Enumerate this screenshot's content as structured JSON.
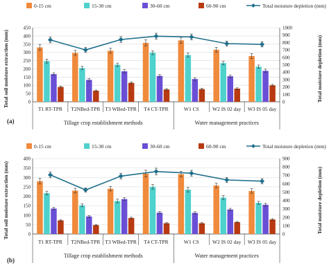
{
  "colors": {
    "0-15 cm": "#f08a3c",
    "15-30 cm": "#4fd1cc",
    "30-60 cm": "#6a4fd6",
    "60-90 cm": "#b83a12",
    "depletion": "#1f6f8b",
    "axis": "#404040",
    "grid": "#d9d9d9"
  },
  "chart_data": [
    {
      "panel_label": "(a)",
      "type": "bar",
      "categories": [
        "T1 RT-TPR",
        "T2NBed-TPR",
        "T3 WBed-TPR",
        "T4 CT-TPR",
        "W1 CS",
        "W2 IS 02 day",
        "W3 IS 05 day"
      ],
      "groups": [
        {
          "label": "Tillage crop establishment methods",
          "from": 0,
          "to": 3
        },
        {
          "label": "Water management practices",
          "from": 4,
          "to": 6
        }
      ],
      "legend": [
        "0-15 cm",
        "15-30 cm",
        "30-60 cm",
        "60-90 cm",
        "Total moisture depletion (mm)"
      ],
      "ylabel": "Total soil moisture extraction (mm)",
      "y2label": "Total moisture depletion (mm)",
      "ylim": [
        0,
        450
      ],
      "yticks": [
        "0",
        "50",
        "100",
        "150",
        "200",
        "250",
        "300",
        "350",
        "400",
        "450"
      ],
      "y2lim": [
        0,
        1000
      ],
      "y2ticks": [
        "0",
        "100",
        "200",
        "300",
        "400",
        "500",
        "600",
        "700",
        "800",
        "900",
        "1000"
      ],
      "series": [
        {
          "name": "0-15 cm",
          "values": [
            330,
            297,
            310,
            358,
            373,
            316,
            278
          ],
          "errors": [
            18,
            15,
            15,
            18,
            18,
            15,
            15
          ]
        },
        {
          "name": "15-30 cm",
          "values": [
            247,
            205,
            225,
            298,
            284,
            235,
            213
          ],
          "errors": [
            12,
            10,
            10,
            12,
            12,
            10,
            10
          ]
        },
        {
          "name": "30-60 cm",
          "values": [
            168,
            133,
            185,
            157,
            138,
            155,
            188
          ],
          "errors": [
            8,
            8,
            10,
            8,
            8,
            8,
            10
          ]
        },
        {
          "name": "60-90 cm",
          "values": [
            90,
            67,
            115,
            75,
            77,
            80,
            100
          ],
          "errors": [
            5,
            4,
            6,
            5,
            5,
            5,
            6
          ]
        }
      ],
      "line": {
        "name": "Total moisture depletion (mm)",
        "values": [
          835,
          700,
          840,
          885,
          875,
          785,
          775
        ],
        "errors": [
          40,
          35,
          40,
          40,
          40,
          35,
          35
        ]
      }
    },
    {
      "panel_label": "(b)",
      "type": "bar",
      "categories": [
        "T1 RT-TPR",
        "T2NBed-TPR",
        "T3 WBed-TPR",
        "T4 CT-TPR",
        "W1 CS",
        "W2 IS 02 day",
        "W3 IS 05 day"
      ],
      "groups": [
        {
          "label": "Tillage crop establishment methods",
          "from": 0,
          "to": 3
        },
        {
          "label": "Water management practices",
          "from": 4,
          "to": 6
        }
      ],
      "legend": [
        "0-15 cm",
        "15-30 cm",
        "30-60 cm",
        "60-90 cm",
        "Total moisture depletion (mm)"
      ],
      "ylabel": "Total soil moisture extraction (mm)",
      "y2label": "Total moisture depletion (mm)",
      "ylim": [
        0,
        400
      ],
      "yticks": [
        "0",
        "50",
        "100",
        "150",
        "200",
        "250",
        "300",
        "350",
        "400"
      ],
      "y2lim": [
        0,
        900
      ],
      "y2ticks": [
        "0",
        "100",
        "200",
        "300",
        "400",
        "500",
        "600",
        "700",
        "800",
        "900"
      ],
      "series": [
        {
          "name": "0-15 cm",
          "values": [
            280,
            230,
            240,
            320,
            317,
            257,
            228
          ],
          "errors": [
            15,
            12,
            12,
            18,
            15,
            12,
            12
          ]
        },
        {
          "name": "15-30 cm",
          "values": [
            217,
            152,
            175,
            250,
            235,
            193,
            165
          ],
          "errors": [
            10,
            8,
            10,
            12,
            12,
            10,
            8
          ]
        },
        {
          "name": "30-60 cm",
          "values": [
            135,
            93,
            185,
            113,
            112,
            130,
            155
          ],
          "errors": [
            6,
            5,
            8,
            6,
            6,
            6,
            8
          ]
        },
        {
          "name": "60-90 cm",
          "values": [
            72,
            47,
            85,
            57,
            57,
            63,
            77
          ],
          "errors": [
            4,
            3,
            4,
            3,
            3,
            3,
            4
          ]
        }
      ],
      "line": {
        "name": "Total moisture depletion (mm)",
        "values": [
          705,
          525,
          690,
          745,
          725,
          645,
          630
        ],
        "errors": [
          35,
          25,
          35,
          40,
          35,
          30,
          30
        ]
      }
    }
  ]
}
